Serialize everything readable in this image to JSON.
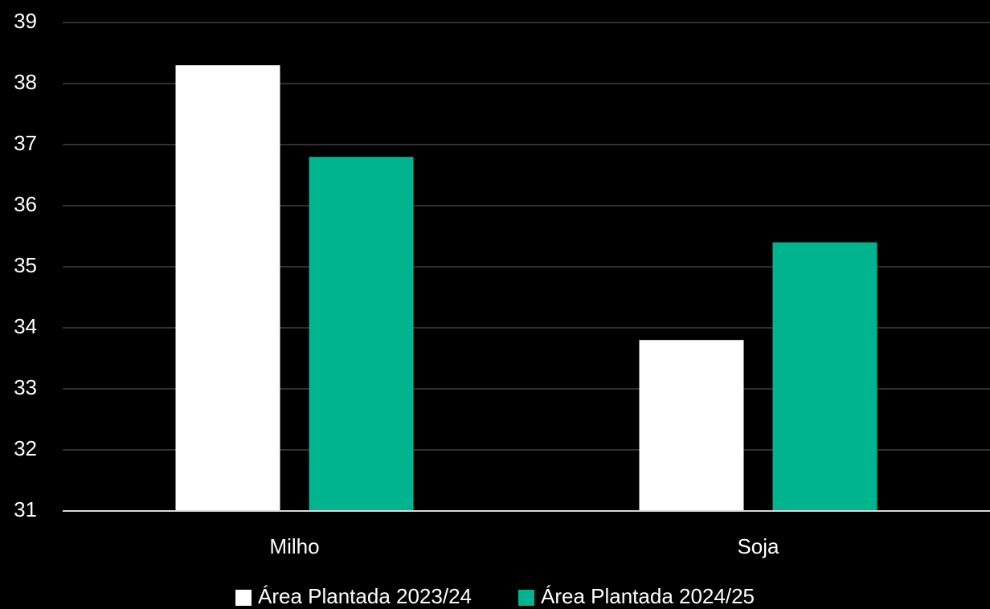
{
  "chart_data": {
    "type": "bar",
    "categories": [
      "Milho",
      "Soja"
    ],
    "series": [
      {
        "name": "Área Plantada 2023/24",
        "color": "#ffffff",
        "values": [
          38.3,
          33.8
        ]
      },
      {
        "name": "Área Plantada 2024/25",
        "color": "#00b48f",
        "values": [
          36.8,
          35.4
        ]
      }
    ],
    "ylim": [
      31,
      39
    ],
    "yticks": [
      31,
      32,
      33,
      34,
      35,
      36,
      37,
      38,
      39
    ],
    "grid": true,
    "legend": "bottom"
  }
}
